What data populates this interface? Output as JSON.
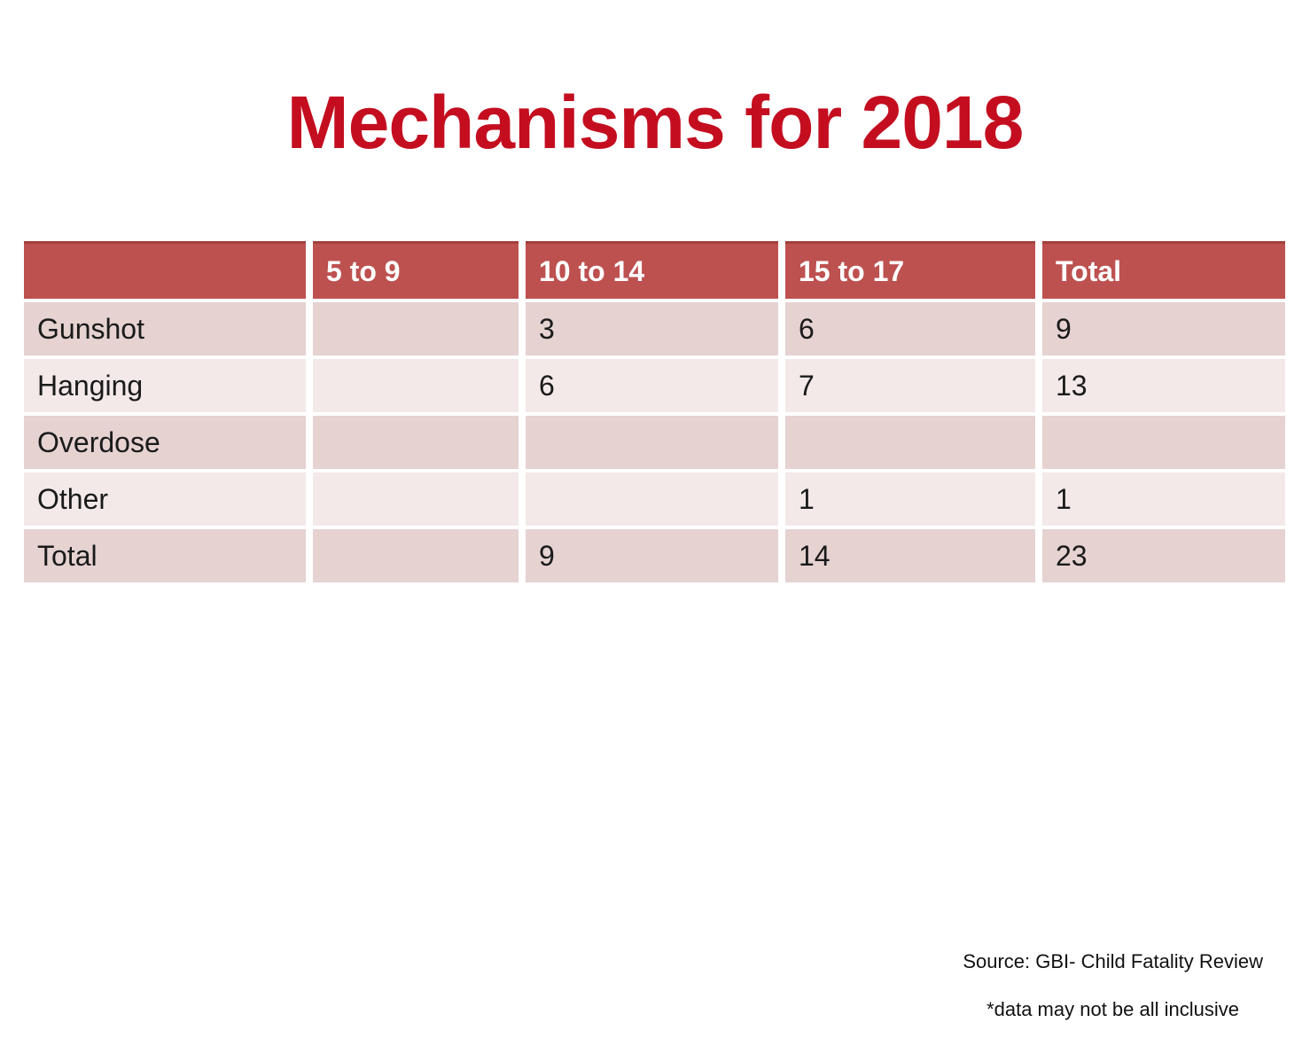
{
  "title": "Mechanisms for 2018",
  "colors": {
    "title_red": "#C40E20",
    "header_bg": "#BD5150",
    "header_top_border": "#A1413E",
    "band_dark": "#E5D2D1",
    "band_light": "#F2E9E8",
    "header_text": "#FFFFFF",
    "body_text": "#1A1A1A"
  },
  "table": {
    "headers": [
      "",
      "5 to 9",
      "10 to 14",
      "15 to 17",
      "Total"
    ],
    "rows": [
      {
        "label": "Gunshot",
        "values": [
          "",
          "3",
          "6",
          "9"
        ]
      },
      {
        "label": "Hanging",
        "values": [
          "",
          "6",
          "7",
          "13"
        ]
      },
      {
        "label": "Overdose",
        "values": [
          "",
          "",
          "",
          ""
        ]
      },
      {
        "label": "Other",
        "values": [
          "",
          "",
          "1",
          "1"
        ]
      },
      {
        "label": "Total",
        "values": [
          "",
          "9",
          "14",
          "23"
        ]
      }
    ]
  },
  "footer": {
    "source": "Source: GBI- Child Fatality Review",
    "note": "*data may not be all inclusive"
  }
}
